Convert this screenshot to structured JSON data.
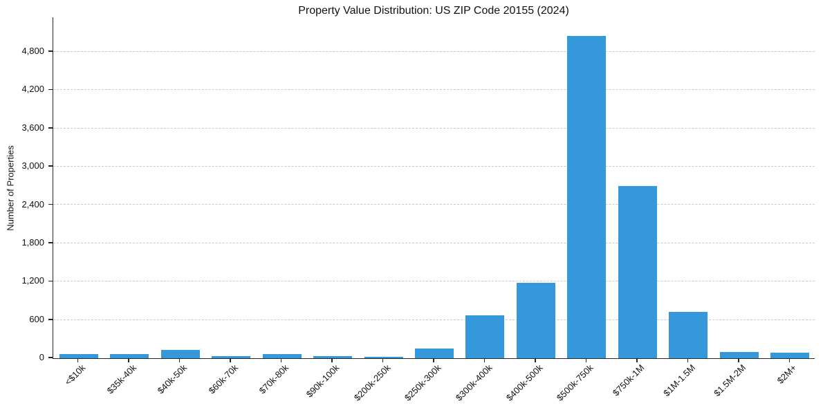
{
  "chart_data": {
    "type": "bar",
    "title": "Property Value Distribution: US ZIP Code 20155 (2024)",
    "xlabel": "",
    "ylabel": "Number of Properties",
    "categories": [
      "<$10k",
      "$35k-40k",
      "$40k-50k",
      "$60k-70k",
      "$70k-80k",
      "$90k-100k",
      "$200k-250k",
      "$250k-300k",
      "$300k-400k",
      "$400k-500k",
      "$500k-750k",
      "$750k-1M",
      "$1M-1.5M",
      "$1.5M-2M",
      "$2M+"
    ],
    "values": [
      60,
      60,
      130,
      35,
      60,
      30,
      25,
      150,
      670,
      1180,
      5050,
      2700,
      730,
      95,
      90
    ],
    "yticks": [
      0,
      600,
      1200,
      1800,
      2400,
      3000,
      3600,
      4200,
      4800
    ],
    "ylim": [
      0,
      5330
    ],
    "bar_color": "#3498db",
    "grid": "horizontal-dashed",
    "gridline_color": "#c9c9c9",
    "axis_color": "#262626",
    "legend": "none",
    "background": "#ffffff"
  }
}
